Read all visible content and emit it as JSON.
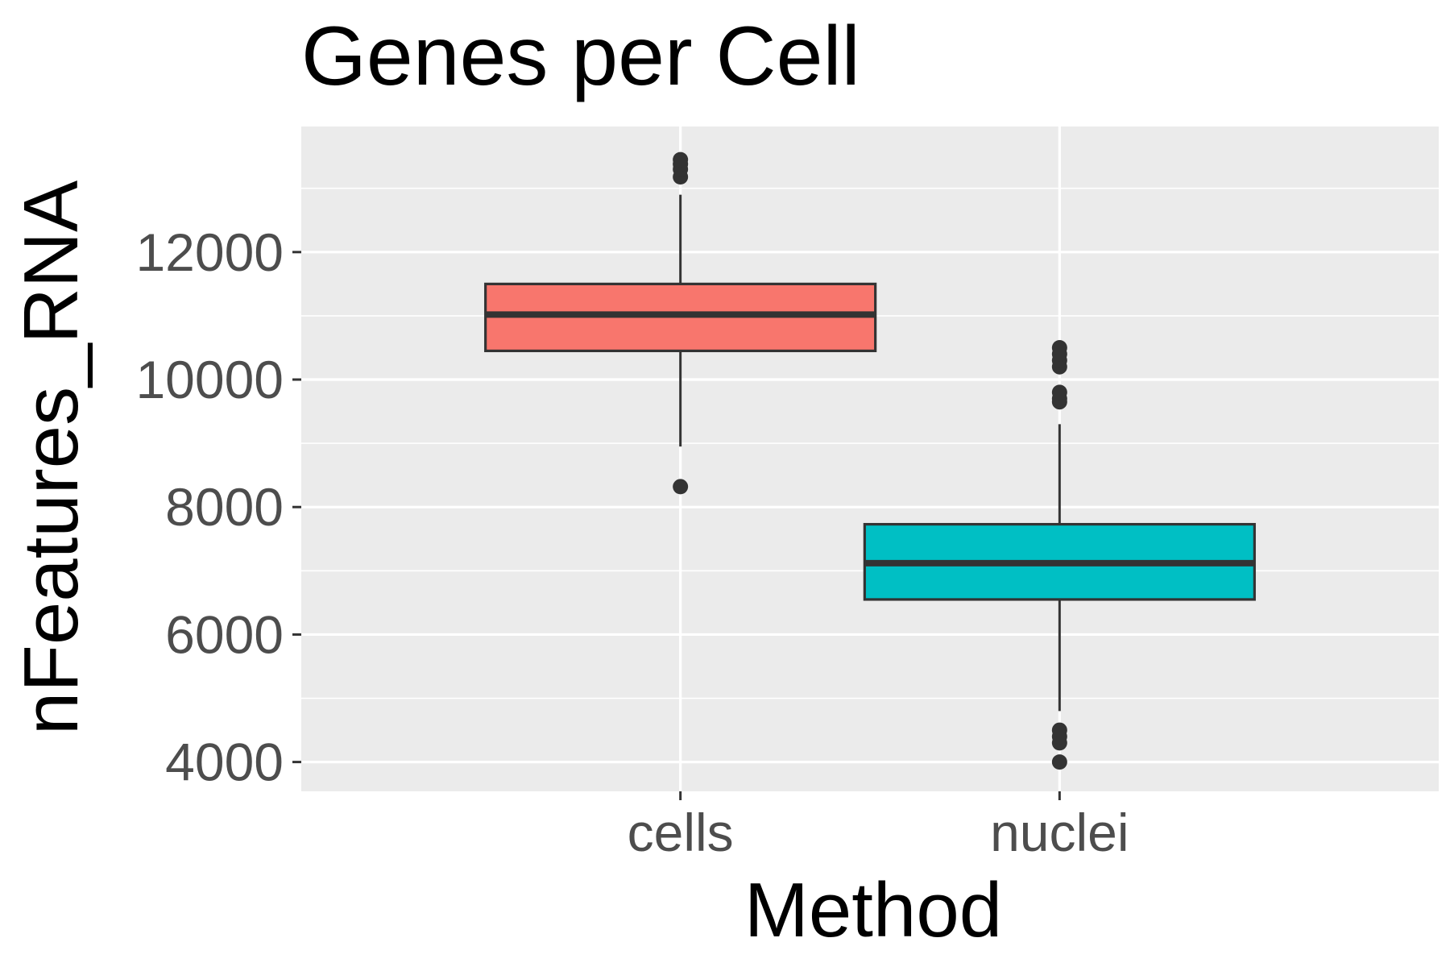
{
  "chart_data": {
    "type": "box",
    "title": "Genes per Cell",
    "xlabel": "Method",
    "ylabel": "nFeatures_RNA",
    "categories": [
      "cells",
      "nuclei"
    ],
    "ylim": [
      3540,
      13970
    ],
    "yticks": [
      4000,
      6000,
      8000,
      10000,
      12000
    ],
    "grid": true,
    "series": [
      {
        "category": "cells",
        "fill": "#F8766D",
        "q1": 10450,
        "median": 11020,
        "q3": 11500,
        "whisker_low": 8950,
        "whisker_high": 12900,
        "outliers": [
          8320,
          13180,
          13300,
          13380,
          13450
        ]
      },
      {
        "category": "nuclei",
        "fill": "#00BFC4",
        "q1": 6550,
        "median": 7120,
        "q3": 7730,
        "whisker_low": 4800,
        "whisker_high": 9300,
        "outliers": [
          4000,
          4300,
          4400,
          4500,
          9650,
          9700,
          9800,
          10200,
          10300,
          10400,
          10500
        ]
      }
    ],
    "colors": {
      "panel": "#EBEBEB",
      "grid": "#FFFFFF",
      "box_line": "#333333",
      "outlier": "#333333"
    }
  }
}
